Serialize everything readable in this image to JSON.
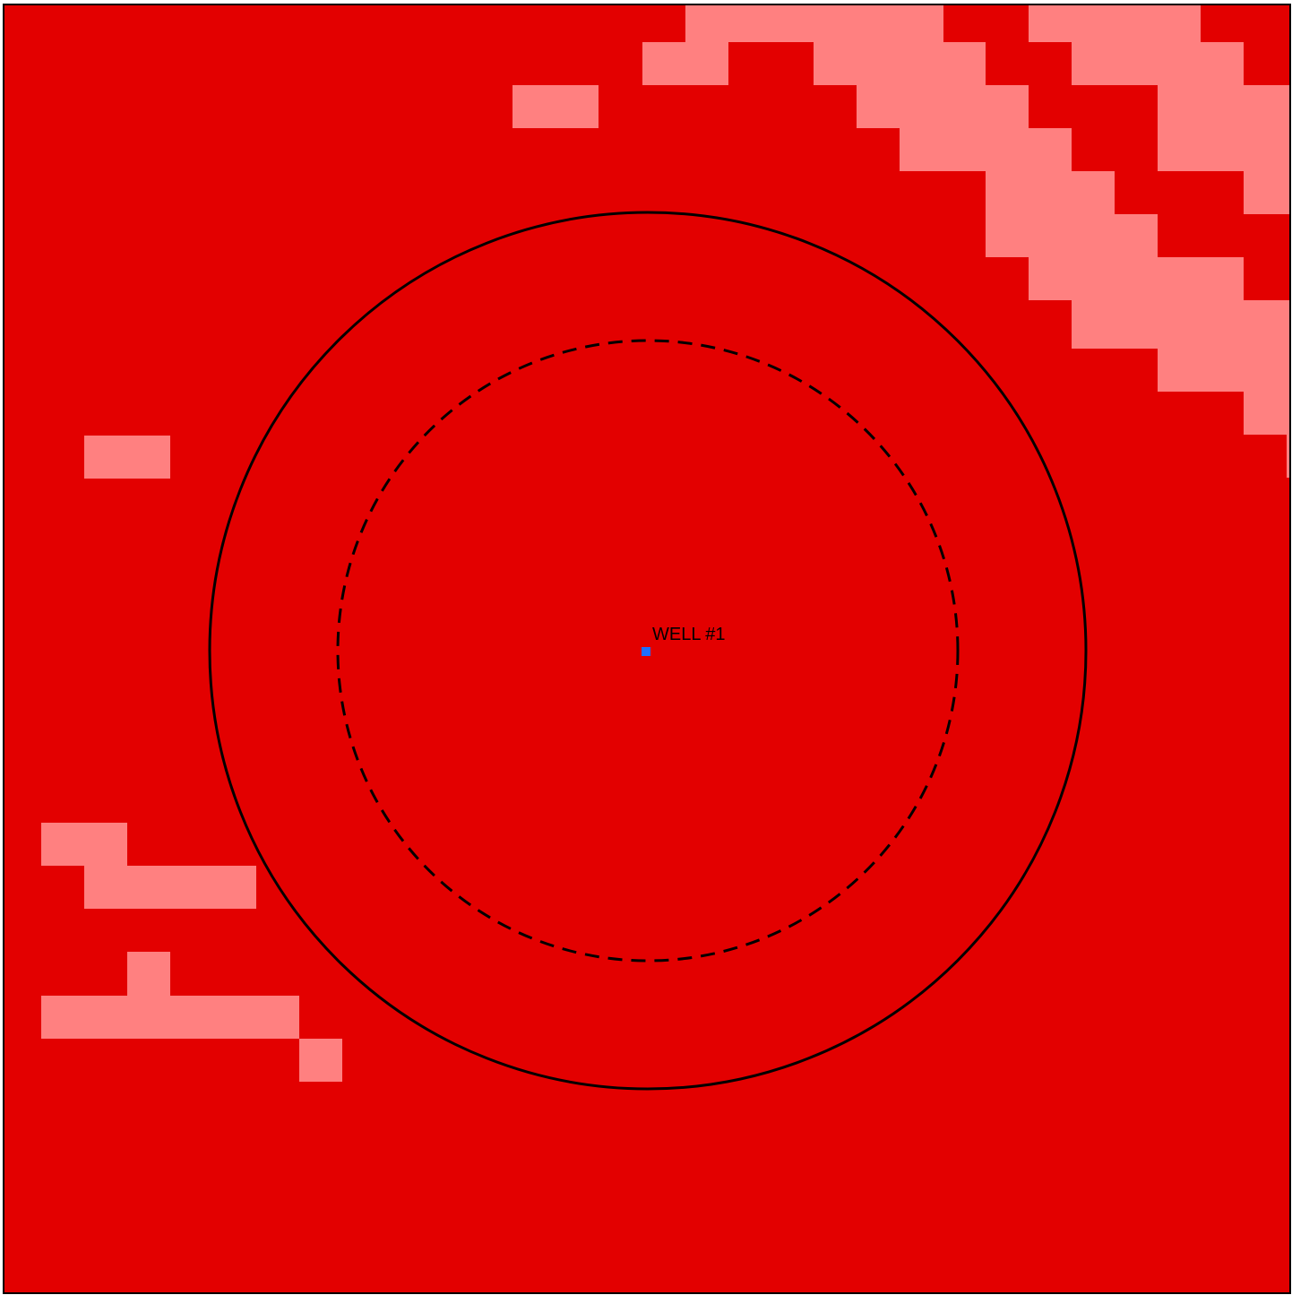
{
  "map": {
    "colors": {
      "background": "#e30000",
      "highlight_cells": "#ff8080",
      "border": "#000000",
      "well_marker": "#1f6fff",
      "rings": "#000000",
      "label": "#000000"
    },
    "well": {
      "label": "WELL #1",
      "marker_icon": "square-well-marker"
    },
    "rings": [
      {
        "name": "outer-ring",
        "style": "solid"
      },
      {
        "name": "inner-ring",
        "style": "dashed"
      }
    ]
  }
}
